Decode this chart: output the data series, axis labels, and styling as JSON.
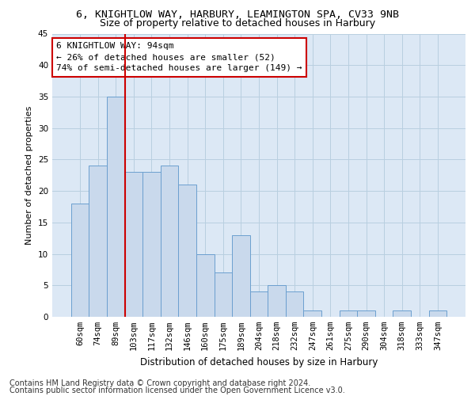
{
  "title_line1": "6, KNIGHTLOW WAY, HARBURY, LEAMINGTON SPA, CV33 9NB",
  "title_line2": "Size of property relative to detached houses in Harbury",
  "xlabel": "Distribution of detached houses by size in Harbury",
  "ylabel": "Number of detached properties",
  "categories": [
    "60sqm",
    "74sqm",
    "89sqm",
    "103sqm",
    "117sqm",
    "132sqm",
    "146sqm",
    "160sqm",
    "175sqm",
    "189sqm",
    "204sqm",
    "218sqm",
    "232sqm",
    "247sqm",
    "261sqm",
    "275sqm",
    "290sqm",
    "304sqm",
    "318sqm",
    "333sqm",
    "347sqm"
  ],
  "values": [
    18,
    24,
    35,
    23,
    23,
    24,
    21,
    10,
    7,
    13,
    4,
    5,
    4,
    1,
    0,
    1,
    1,
    0,
    1,
    0,
    1
  ],
  "bar_color": "#c9d9ec",
  "bar_edge_color": "#6b9fcf",
  "subject_line_index": 2,
  "subject_line_color": "#cc0000",
  "annotation_line1": "6 KNIGHTLOW WAY: 94sqm",
  "annotation_line2": "← 26% of detached houses are smaller (52)",
  "annotation_line3": "74% of semi-detached houses are larger (149) →",
  "annotation_box_color": "#cc0000",
  "ylim": [
    0,
    45
  ],
  "yticks": [
    0,
    5,
    10,
    15,
    20,
    25,
    30,
    35,
    40,
    45
  ],
  "grid_color": "#b8cfe0",
  "bg_color": "#dce8f5",
  "footer_line1": "Contains HM Land Registry data © Crown copyright and database right 2024.",
  "footer_line2": "Contains public sector information licensed under the Open Government Licence v3.0.",
  "title_fontsize": 9.5,
  "subtitle_fontsize": 9,
  "xlabel_fontsize": 8.5,
  "ylabel_fontsize": 8,
  "tick_fontsize": 7.5,
  "annotation_fontsize": 8,
  "footer_fontsize": 7
}
